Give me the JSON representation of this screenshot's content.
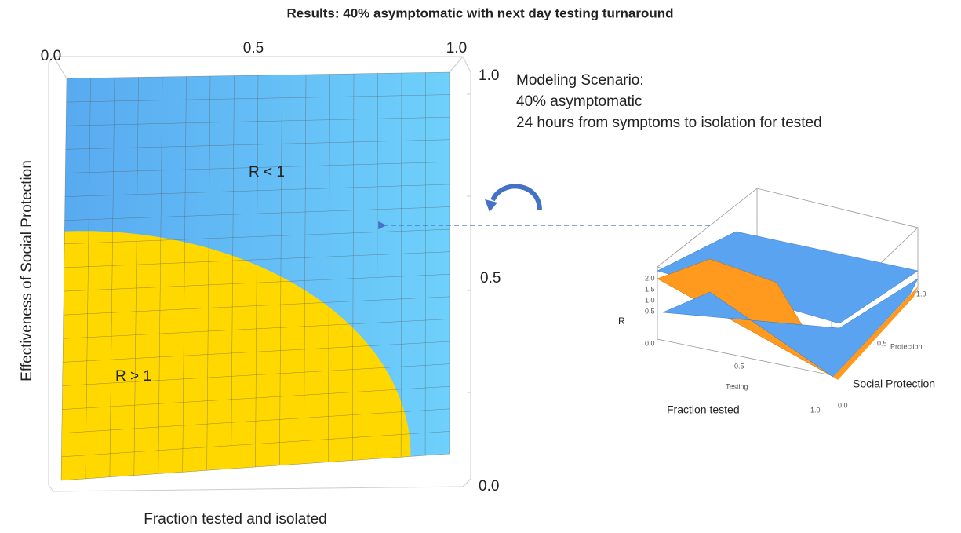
{
  "title": "Results: 40% asymptomatic with next day testing turnaround",
  "main_plot": {
    "top_ticks": [
      "0.0",
      "0.5",
      "1.0"
    ],
    "right_ticks": [
      "1.0",
      "0.5",
      "0.0"
    ],
    "y_label": "Effectiveness of Social Protection",
    "x_label": "Fraction tested and isolated",
    "region_low": "R < 1",
    "region_high": "R > 1"
  },
  "scenario": {
    "heading": "Modeling Scenario:",
    "lines": [
      "40% asymptomatic",
      "24 hours from symptoms to isolation for tested"
    ]
  },
  "inset": {
    "z_label": "R",
    "z_ticks": [
      "2.0",
      "1.5",
      "1.0",
      "0.5",
      "0.0"
    ],
    "testing_ticks": [
      "0.5",
      "1.0"
    ],
    "testing_label": "Testing",
    "protection_ticks": [
      "0.0",
      "0.5",
      "1.0"
    ],
    "protection_label": "Protection",
    "x_caption": "Fraction tested",
    "y_caption": "Social Protection"
  }
}
